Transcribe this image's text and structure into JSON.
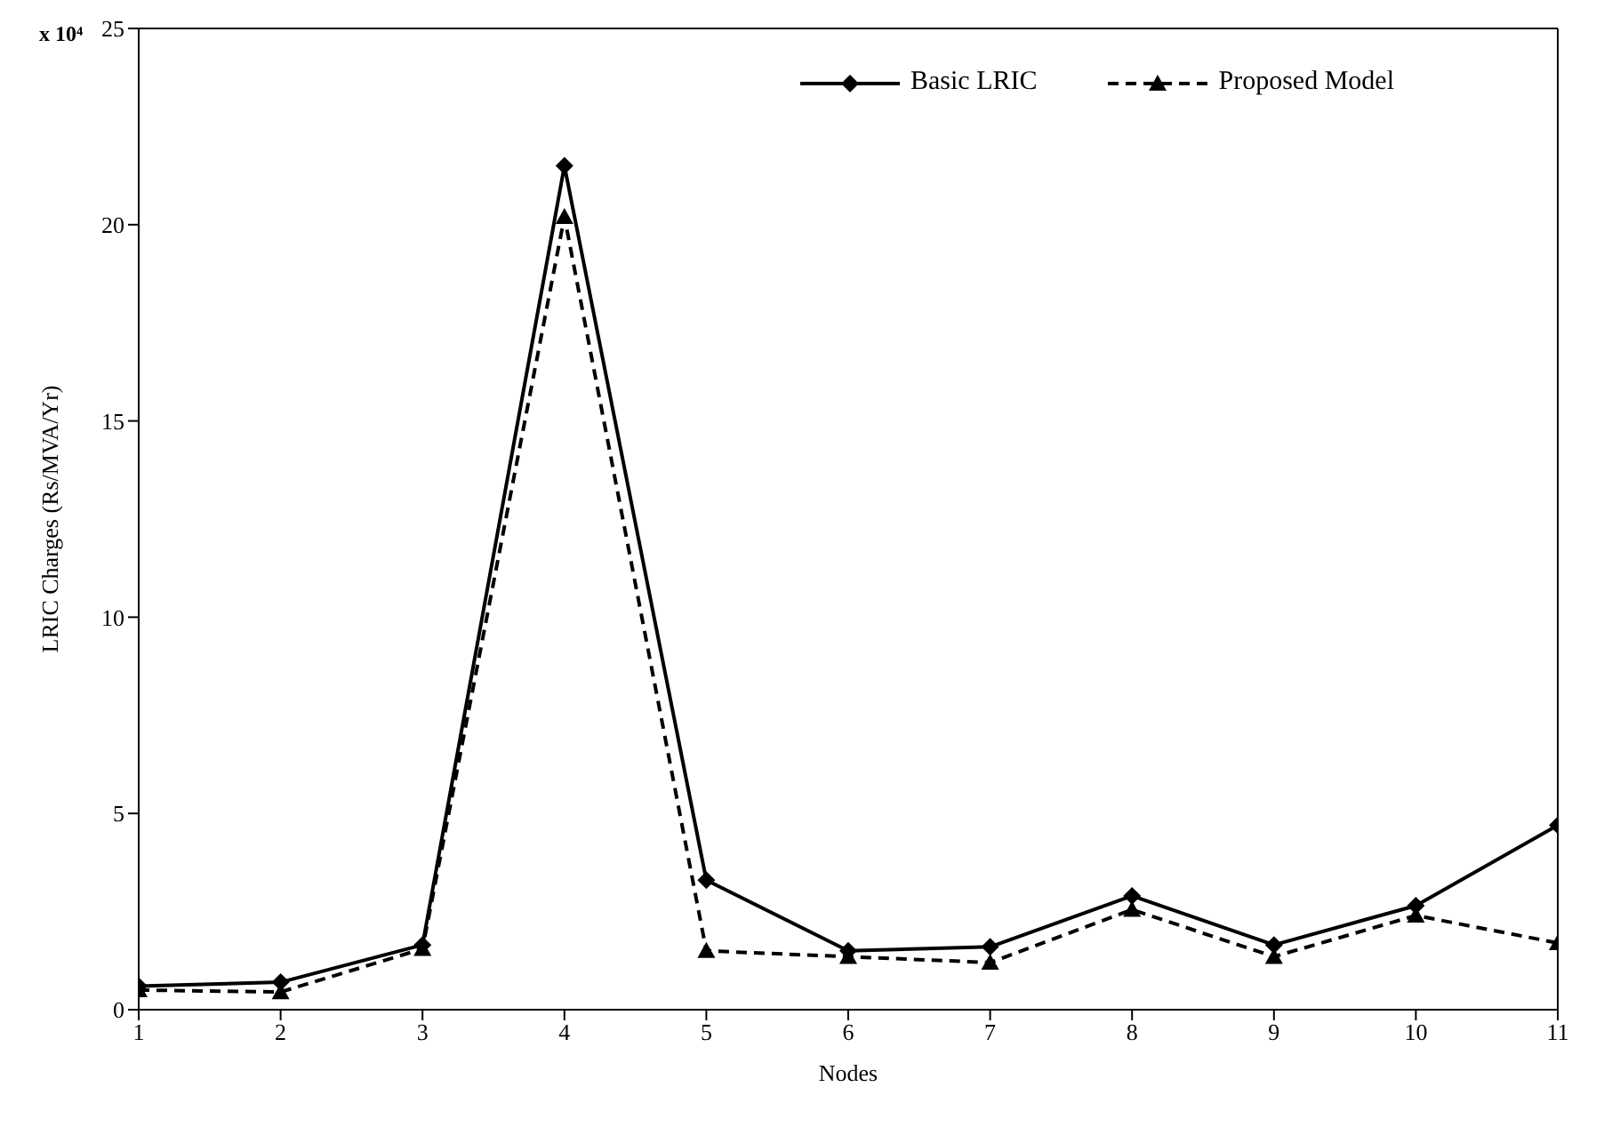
{
  "chart_data": {
    "type": "line",
    "xlabel": "Nodes",
    "ylabel": "LRIC Charges (Rs/MVA/Yr)",
    "annotations": [
      "x 10⁴"
    ],
    "x": [
      1,
      2,
      3,
      4,
      5,
      6,
      7,
      8,
      9,
      10,
      11
    ],
    "series": [
      {
        "name": "Basic LRIC",
        "color": "#000000",
        "marker": "diamond",
        "line_style": "solid",
        "values": [
          0.6,
          0.7,
          1.65,
          21.5,
          3.3,
          1.5,
          1.6,
          2.9,
          1.65,
          2.65,
          4.7
        ]
      },
      {
        "name": "Proposed Model",
        "color": "#000000",
        "marker": "triangle",
        "line_style": "dashed",
        "values": [
          0.5,
          0.45,
          1.55,
          20.2,
          1.5,
          1.35,
          1.2,
          2.55,
          1.35,
          2.4,
          1.7
        ]
      }
    ],
    "xlim": [
      1,
      11
    ],
    "xticks": [
      1,
      2,
      3,
      4,
      5,
      6,
      7,
      8,
      9,
      10,
      11
    ],
    "ylim": [
      0,
      25
    ],
    "yticks": [
      0,
      5,
      10,
      15,
      20,
      25
    ],
    "grid": false,
    "legend": "top right"
  }
}
